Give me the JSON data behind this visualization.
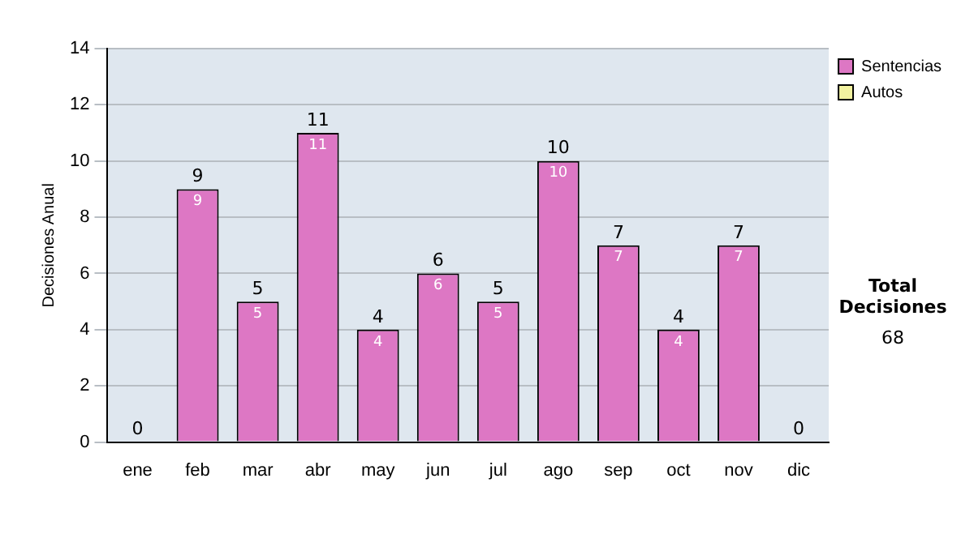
{
  "chart_data": {
    "type": "bar",
    "stacked": true,
    "ylabel": "Decisiones Anual",
    "categories": [
      "ene",
      "feb",
      "mar",
      "abr",
      "may",
      "jun",
      "jul",
      "ago",
      "sep",
      "oct",
      "nov",
      "dic"
    ],
    "series": [
      {
        "name": "Sentencias",
        "color": "#dd77c4",
        "values": [
          0,
          9,
          5,
          11,
          4,
          6,
          5,
          10,
          7,
          4,
          7,
          0
        ],
        "value_labels": [
          null,
          "9",
          "5",
          "11",
          "4",
          "6",
          "5",
          "10",
          "7",
          "4",
          "7",
          null
        ]
      },
      {
        "name": "Autos",
        "color": "#f2f2a0",
        "values": [
          0,
          0,
          0,
          0,
          0,
          0,
          0,
          0,
          0,
          0,
          0,
          0
        ]
      }
    ],
    "totals": [
      "0",
      "9",
      "5",
      "11",
      "4",
      "6",
      "5",
      "10",
      "7",
      "4",
      "7",
      "0"
    ],
    "ylim": [
      0,
      14
    ],
    "yticks": [
      0,
      2,
      4,
      6,
      8,
      10,
      12,
      14
    ],
    "grid": "y",
    "legend": "right",
    "annotations": [
      "Total Decisiones",
      "68"
    ]
  }
}
